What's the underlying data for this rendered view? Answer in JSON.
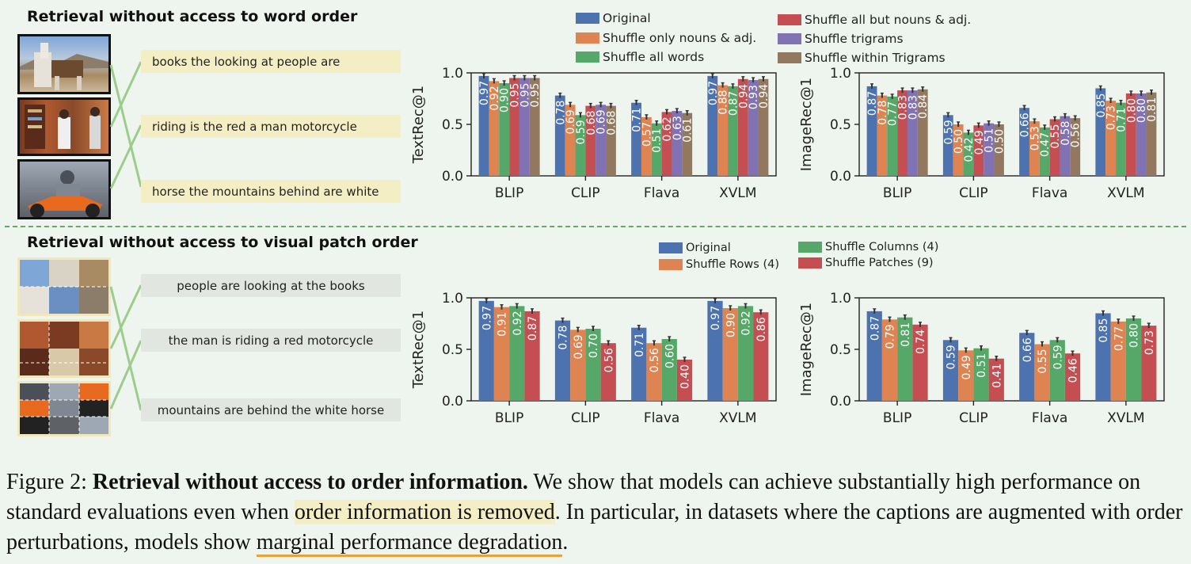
{
  "top_title": "Retrieval without access to word order",
  "bottom_title": "Retrieval without access to visual patch order",
  "top_captions": [
    "books the looking at people are",
    "riding is the red a man motorcycle",
    "horse the mountains behind are white"
  ],
  "bottom_captions": [
    "people are looking at the books",
    "the man is riding a red motorcycle",
    "mountains are behind the white horse"
  ],
  "top_legend": [
    "Original",
    "Shuffle only nouns & adj.",
    "Shuffle all words",
    "Shuffle all but nouns & adj.",
    "Shuffle trigrams",
    "Shuffle within Trigrams"
  ],
  "bottom_legend": [
    "Original",
    "Shuffle Rows (4)",
    "Shuffle Columns (4)",
    "Shuffle Patches (9)"
  ],
  "colors": {
    "top": [
      "#4c72b0",
      "#dd8452",
      "#55a868",
      "#c44e52",
      "#8172b3",
      "#937860"
    ],
    "bottom": [
      "#4c72b0",
      "#dd8452",
      "#55a868",
      "#c44e52"
    ],
    "highlight": "#f4eec4",
    "underline": "#e8a23a",
    "divider": "#6aa56a"
  },
  "caption": {
    "prefix": "Figure 2: ",
    "bold": "Retrieval without access to order information.",
    "t1": " We show that models can achieve substantially high performance on standard evaluations even when ",
    "highlight": "order information is removed",
    "t2": ". In particular, in datasets where the captions are augmented with order perturbations, models show ",
    "underline": "marginal performance degradation",
    "t3": "."
  },
  "chart_data": [
    {
      "type": "bar",
      "ylabel": "TextRec@1",
      "ylim": [
        0,
        1
      ],
      "yticks": [
        "0.0",
        "0.5",
        "1.0"
      ],
      "categories": [
        "BLIP",
        "CLIP",
        "Flava",
        "XVLM"
      ],
      "series": [
        {
          "name": "Original",
          "values": [
            0.97,
            0.78,
            0.71,
            0.97
          ]
        },
        {
          "name": "Shuffle only nouns & adj.",
          "values": [
            0.92,
            0.69,
            0.57,
            0.88
          ]
        },
        {
          "name": "Shuffle all words",
          "values": [
            0.9,
            0.59,
            0.51,
            0.87
          ]
        },
        {
          "name": "Shuffle all but nouns & adj.",
          "values": [
            0.95,
            0.68,
            0.62,
            0.94
          ]
        },
        {
          "name": "Shuffle trigrams",
          "values": [
            0.95,
            0.69,
            0.63,
            0.93
          ]
        },
        {
          "name": "Shuffle within Trigrams",
          "values": [
            0.95,
            0.68,
            0.61,
            0.94
          ]
        }
      ],
      "labels": [
        [
          "0.97",
          "0.92",
          "0.90",
          "0.95",
          "0.95",
          "0.95"
        ],
        [
          "0.78",
          "0.69",
          "0.59",
          "0.68",
          "0.69",
          "0.68"
        ],
        [
          "0.71",
          "0.57",
          "0.51",
          "0.62",
          "0.63",
          "0.61"
        ],
        [
          "0.97",
          "0.88",
          "0.87",
          "0.94",
          "0.93",
          "0.94"
        ]
      ]
    },
    {
      "type": "bar",
      "ylabel": "ImageRec@1",
      "ylim": [
        0,
        1
      ],
      "yticks": [
        "0.0",
        "0.5",
        "1.0"
      ],
      "categories": [
        "BLIP",
        "CLIP",
        "Flava",
        "XVLM"
      ],
      "series": [
        {
          "name": "Original",
          "values": [
            0.87,
            0.59,
            0.66,
            0.85
          ]
        },
        {
          "name": "Shuffle only nouns & adj.",
          "values": [
            0.78,
            0.5,
            0.53,
            0.73
          ]
        },
        {
          "name": "Shuffle all words",
          "values": [
            0.77,
            0.42,
            0.47,
            0.71
          ]
        },
        {
          "name": "Shuffle all but nouns & adj.",
          "values": [
            0.83,
            0.49,
            0.55,
            0.8
          ]
        },
        {
          "name": "Shuffle trigrams",
          "values": [
            0.83,
            0.51,
            0.58,
            0.8
          ]
        },
        {
          "name": "Shuffle within Trigrams",
          "values": [
            0.84,
            0.5,
            0.56,
            0.81
          ]
        }
      ],
      "labels": [
        [
          "0.87",
          "0.78",
          "0.77",
          "0.83",
          "0.83",
          "0.84"
        ],
        [
          "0.59",
          "0.50",
          "0.42",
          "0.49",
          "0.51",
          "0.50"
        ],
        [
          "0.66",
          "0.53",
          "0.47",
          "0.55",
          "0.58",
          "0.56"
        ],
        [
          "0.85",
          "0.73",
          "0.71",
          "0.80",
          "0.80",
          "0.81"
        ]
      ]
    },
    {
      "type": "bar",
      "ylabel": "TextRec@1",
      "ylim": [
        0,
        1
      ],
      "yticks": [
        "0.0",
        "0.5",
        "1.0"
      ],
      "categories": [
        "BLIP",
        "CLIP",
        "Flava",
        "XVLM"
      ],
      "series": [
        {
          "name": "Original",
          "values": [
            0.97,
            0.78,
            0.71,
            0.97
          ]
        },
        {
          "name": "Shuffle Rows (4)",
          "values": [
            0.91,
            0.69,
            0.56,
            0.9
          ]
        },
        {
          "name": "Shuffle Columns (4)",
          "values": [
            0.92,
            0.7,
            0.6,
            0.92
          ]
        },
        {
          "name": "Shuffle Patches (9)",
          "values": [
            0.87,
            0.56,
            0.4,
            0.86
          ]
        }
      ],
      "labels": [
        [
          "0.97",
          "0.91",
          "0.92",
          "0.87"
        ],
        [
          "0.78",
          "0.69",
          "0.70",
          "0.56"
        ],
        [
          "0.71",
          "0.56",
          "0.60",
          "0.40"
        ],
        [
          "0.97",
          "0.90",
          "0.92",
          "0.86"
        ]
      ]
    },
    {
      "type": "bar",
      "ylabel": "ImageRec@1",
      "ylim": [
        0,
        1
      ],
      "yticks": [
        "0.0",
        "0.5",
        "1.0"
      ],
      "categories": [
        "BLIP",
        "CLIP",
        "Flava",
        "XVLM"
      ],
      "series": [
        {
          "name": "Original",
          "values": [
            0.87,
            0.59,
            0.66,
            0.85
          ]
        },
        {
          "name": "Shuffle Rows (4)",
          "values": [
            0.79,
            0.49,
            0.55,
            0.77
          ]
        },
        {
          "name": "Shuffle Columns (4)",
          "values": [
            0.81,
            0.51,
            0.59,
            0.8
          ]
        },
        {
          "name": "Shuffle Patches (9)",
          "values": [
            0.74,
            0.41,
            0.46,
            0.73
          ]
        }
      ],
      "labels": [
        [
          "0.87",
          "0.79",
          "0.81",
          "0.74"
        ],
        [
          "0.59",
          "0.49",
          "0.51",
          "0.41"
        ],
        [
          "0.66",
          "0.55",
          "0.59",
          "0.46"
        ],
        [
          "0.85",
          "0.77",
          "0.80",
          "0.73"
        ]
      ]
    }
  ]
}
